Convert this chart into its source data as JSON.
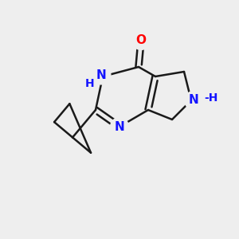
{
  "bg_color": "#eeeeee",
  "bond_color": "#1a1a1a",
  "N_color": "#1414ff",
  "O_color": "#ff0000",
  "bond_width": 1.8,
  "font_size": 11,
  "fig_width": 3.0,
  "fig_height": 3.0,
  "dpi": 100,
  "xlim": [
    0,
    10
  ],
  "ylim": [
    0,
    10
  ]
}
